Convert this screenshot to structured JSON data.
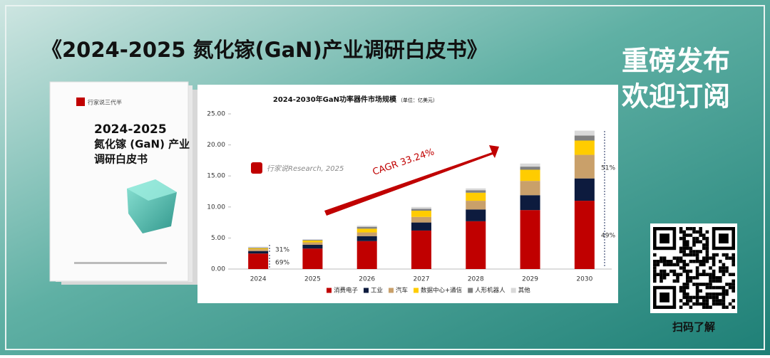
{
  "banner": {
    "title": "《2024-2025 氮化镓(GaN)产业调研白皮书》",
    "slogan_1": "重磅发布",
    "slogan_2": "欢迎订阅",
    "qr_caption": "扫码了解"
  },
  "book": {
    "brand": "行家说三代半",
    "years": "2024-2025",
    "line_1": "氮化镓 (GaN) 产业",
    "line_2": "调研白皮书"
  },
  "chart_data": {
    "type": "stacked-bar",
    "title": "2024-2030年GaN功率器件市场规模",
    "unit": "（单位：亿美元）",
    "watermark": "行家说Research, 2025",
    "cagr": "CAGR 33.24%",
    "categories": [
      "2024",
      "2025",
      "2026",
      "2027",
      "2028",
      "2029",
      "2030"
    ],
    "series": [
      {
        "name": "消费电子",
        "color": "#c00000",
        "values": [
          2.5,
          3.3,
          4.5,
          6.2,
          7.7,
          9.5,
          11.0
        ]
      },
      {
        "name": "工业",
        "color": "#0d1b3e",
        "values": [
          0.4,
          0.6,
          0.8,
          1.3,
          1.9,
          2.4,
          3.6
        ]
      },
      {
        "name": "汽车",
        "color": "#c9a06a",
        "values": [
          0.3,
          0.4,
          0.6,
          0.9,
          1.4,
          2.3,
          3.8
        ]
      },
      {
        "name": "数据中心+通信",
        "color": "#ffcc00",
        "values": [
          0.15,
          0.3,
          0.6,
          1.0,
          1.3,
          1.8,
          2.3
        ]
      },
      {
        "name": "人形机器人",
        "color": "#808080",
        "values": [
          0.1,
          0.1,
          0.3,
          0.3,
          0.4,
          0.5,
          0.8
        ]
      },
      {
        "name": "其他",
        "color": "#d9d9d9",
        "values": [
          0.15,
          0.1,
          0.2,
          0.3,
          0.3,
          0.5,
          0.8
        ]
      }
    ],
    "ylim": [
      0,
      25
    ],
    "yticks": [
      {
        "value": 0,
        "label": "0.00"
      },
      {
        "value": 5,
        "label": "5.00"
      },
      {
        "value": 10,
        "label": "10.00"
      },
      {
        "value": 15,
        "label": "15.00"
      },
      {
        "value": 20,
        "label": "20.00"
      },
      {
        "value": 25,
        "label": "25.00"
      }
    ],
    "annotations": [
      "31%",
      "69%",
      "51%",
      "49%"
    ],
    "legend": "bottom"
  }
}
